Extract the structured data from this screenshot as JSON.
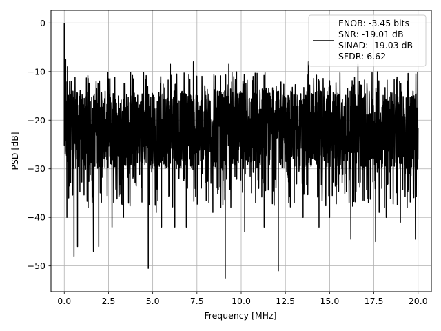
{
  "chart_data": {
    "type": "line",
    "xlabel": "Frequency [MHz]",
    "ylabel": "PSD [dB]",
    "xlim": [
      -0.75,
      20.75
    ],
    "ylim": [
      -55.3,
      2.6
    ],
    "xticks": [
      0.0,
      2.5,
      5.0,
      7.5,
      10.0,
      12.5,
      15.0,
      17.5,
      20.0
    ],
    "xtick_labels": [
      "0.0",
      "2.5",
      "5.0",
      "7.5",
      "10.0",
      "12.5",
      "15.0",
      "17.5",
      "20.0"
    ],
    "yticks": [
      0,
      -10,
      -20,
      -30,
      -40,
      -50
    ],
    "ytick_labels": [
      "0",
      "−10",
      "−20",
      "−30",
      "−40",
      "−50"
    ],
    "grid": true,
    "legend_position": "top-right",
    "series": [
      {
        "name": "ENOB: -3.45 bits\nSNR: -19.01 dB\nSINAD: -19.03 dB\nSFDR: 6.62",
        "color": "#000000",
        "x_range": [
          0.0,
          20.0
        ],
        "noise_floor_db": -21,
        "typical_range_db": [
          -30,
          -14
        ],
        "envelope_db": [
          -38,
          -10
        ],
        "spikes": [
          {
            "x": 0.0,
            "y": 0.0
          },
          {
            "x": 0.05,
            "y": -24
          },
          {
            "x": 0.08,
            "y": -7.5
          },
          {
            "x": 0.12,
            "y": -17
          },
          {
            "x": 0.15,
            "y": -40
          },
          {
            "x": 0.18,
            "y": -9
          },
          {
            "x": 0.25,
            "y": -36
          },
          {
            "x": 0.3,
            "y": -12
          },
          {
            "x": 0.55,
            "y": -48
          },
          {
            "x": 0.75,
            "y": -46
          },
          {
            "x": 1.35,
            "y": -38
          },
          {
            "x": 1.65,
            "y": -47
          },
          {
            "x": 1.95,
            "y": -46
          },
          {
            "x": 2.7,
            "y": -42
          },
          {
            "x": 3.35,
            "y": -40
          },
          {
            "x": 4.75,
            "y": -50.5
          },
          {
            "x": 5.2,
            "y": -39
          },
          {
            "x": 5.5,
            "y": -42
          },
          {
            "x": 6.0,
            "y": -8.5
          },
          {
            "x": 6.25,
            "y": -42
          },
          {
            "x": 6.9,
            "y": -42
          },
          {
            "x": 7.3,
            "y": -8
          },
          {
            "x": 8.4,
            "y": -39
          },
          {
            "x": 9.1,
            "y": -52.5
          },
          {
            "x": 9.3,
            "y": -8.5
          },
          {
            "x": 10.2,
            "y": -43
          },
          {
            "x": 11.3,
            "y": -42
          },
          {
            "x": 12.1,
            "y": -51
          },
          {
            "x": 13.0,
            "y": -37
          },
          {
            "x": 13.5,
            "y": -40
          },
          {
            "x": 13.8,
            "y": -8
          },
          {
            "x": 14.4,
            "y": -42
          },
          {
            "x": 15.0,
            "y": -40
          },
          {
            "x": 16.2,
            "y": -44.5
          },
          {
            "x": 16.6,
            "y": -8.5
          },
          {
            "x": 17.6,
            "y": -45
          },
          {
            "x": 17.8,
            "y": -39
          },
          {
            "x": 18.2,
            "y": -40
          },
          {
            "x": 19.0,
            "y": -41
          },
          {
            "x": 19.85,
            "y": -44.5
          }
        ]
      }
    ]
  }
}
